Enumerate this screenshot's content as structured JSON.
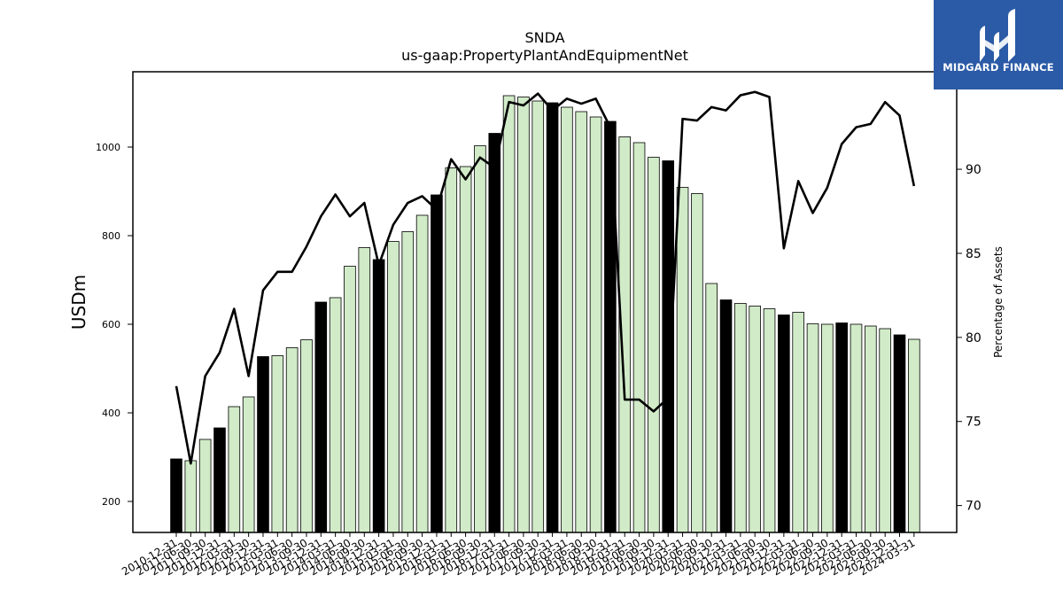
{
  "brand": {
    "name": "MIDGARD FINANCE",
    "color": "#2b5aa6"
  },
  "chart_data": {
    "type": "bar",
    "title": "SNDA",
    "subtitle": "us-gaap:PropertyPlantAndEquipmentNet",
    "ylabel": "USDm",
    "y2label": "Percentage of Assets",
    "ylim": [
      130,
      1170
    ],
    "y2lim": [
      68.4,
      95.8
    ],
    "yticks": [
      200,
      400,
      600,
      800,
      1000
    ],
    "y2ticks": [
      70,
      75,
      80,
      85,
      90
    ],
    "colors": {
      "annual_bar": "#000000",
      "quarter_bar": "#d1ebc8",
      "line": "#000000"
    },
    "categories": [
      "2010-12-31",
      "2011-06-30",
      "2011-09-30",
      "2011-12-31",
      "2012-03-31",
      "2012-09-30",
      "2012-12-31",
      "2013-03-31",
      "2013-06-30",
      "2013-09-30",
      "2013-12-31",
      "2014-03-31",
      "2014-06-30",
      "2014-09-30",
      "2014-12-31",
      "2015-03-31",
      "2015-06-30",
      "2015-09-30",
      "2015-12-31",
      "2016-03-31",
      "2016-06-30",
      "2016-09-30",
      "2016-12-31",
      "2017-03-31",
      "2017-06-30",
      "2017-09-30",
      "2017-12-31",
      "2018-03-31",
      "2018-06-30",
      "2018-09-30",
      "2018-12-31",
      "2019-03-31",
      "2019-06-30",
      "2019-09-30",
      "2019-12-31",
      "2020-03-31",
      "2020-06-30",
      "2020-09-30",
      "2020-12-31",
      "2021-03-31",
      "2021-06-30",
      "2021-09-30",
      "2021-12-31",
      "2022-03-31",
      "2022-06-30",
      "2022-09-30",
      "2022-12-31",
      "2023-03-31",
      "2023-06-30",
      "2023-09-30",
      "2023-12-31",
      "2024-03-31"
    ],
    "series": [
      {
        "values": [
          296,
          292,
          340,
          366,
          414,
          436,
          527,
          529,
          547,
          565,
          650,
          660,
          731,
          773,
          746,
          787,
          809,
          846,
          892,
          953,
          956,
          1003,
          1031,
          1116,
          1113,
          1104,
          1100,
          1090,
          1080,
          1068,
          1058,
          1023,
          1010,
          977,
          969,
          909,
          895,
          692,
          655,
          647,
          641,
          635,
          621,
          627,
          601,
          600,
          603,
          600,
          596,
          590,
          576,
          566
        ],
        "annual": [
          true,
          false,
          false,
          true,
          false,
          false,
          true,
          false,
          false,
          false,
          true,
          false,
          false,
          false,
          true,
          false,
          false,
          false,
          true,
          false,
          false,
          false,
          true,
          false,
          false,
          false,
          true,
          false,
          false,
          false,
          true,
          false,
          false,
          false,
          true,
          false,
          false,
          false,
          true,
          false,
          false,
          false,
          true,
          false,
          false,
          false,
          true,
          false,
          false,
          false,
          true,
          false
        ]
      },
      {
        "axis": "right",
        "values": [
          77.1,
          72.5,
          77.7,
          79.1,
          81.7,
          77.7,
          82.8,
          83.9,
          83.9,
          85.4,
          87.2,
          88.5,
          87.2,
          88.0,
          84.3,
          86.7,
          88.0,
          88.4,
          87.6,
          90.6,
          89.4,
          90.7,
          90.1,
          94.0,
          93.8,
          94.5,
          93.5,
          94.2,
          93.9,
          94.2,
          92.5,
          76.3,
          76.3,
          75.6,
          76.4,
          93.0,
          92.9,
          93.7,
          93.5,
          94.4,
          94.6,
          94.3,
          85.3,
          89.3,
          87.4,
          88.9,
          91.5,
          92.5,
          92.7,
          94.0,
          93.2,
          89.0
        ]
      }
    ]
  }
}
